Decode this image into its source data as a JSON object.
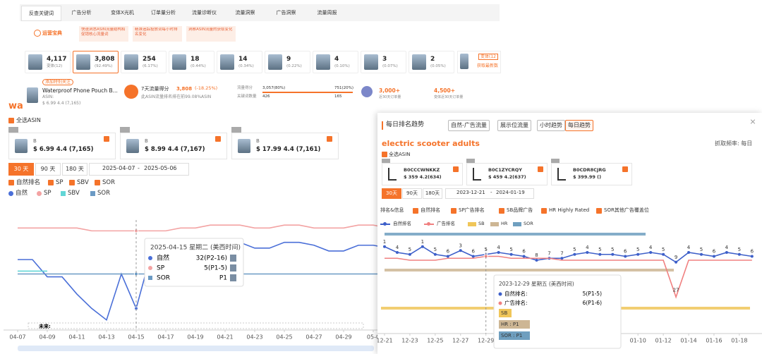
{
  "tabs": [
    "反查关键词",
    "广告分析",
    "变体X光机",
    "订单量分析",
    "流量诊断仪",
    "流量洞察",
    "广告洞察",
    "流量周报"
  ],
  "tips": {
    "label": "运营宝典",
    "items": [
      "快速洞悉ASIN流量结构和促销核心流量词",
      "精准追踪投放词每小时排名变化",
      "洞察ASIN流量的获取变化"
    ]
  },
  "variants": [
    {
      "value": "4,117",
      "share": "变体(12)"
    },
    {
      "value": "3,808",
      "share": "(92.49%)"
    },
    {
      "value": "254",
      "share": "(6.17%)"
    },
    {
      "value": "18",
      "share": "(0.44%)"
    },
    {
      "value": "14",
      "share": "(0.34%)"
    },
    {
      "value": "9",
      "share": "(0.22%)"
    },
    {
      "value": "4",
      "share": "(0.10%)"
    },
    {
      "value": "3",
      "share": "(0.07%)"
    },
    {
      "value": "2",
      "share": "(0.05%)"
    }
  ],
  "variant_more": [
    "变体(12",
    "获取最新数"
  ],
  "product": {
    "follow": "添加特别关注",
    "name": "Waterproof Phone Pouch B...",
    "asin": "ASIN:",
    "price": "$ 6.99 4.4 (7,165)"
  },
  "score": {
    "label": "7天流量得分",
    "value": "3,808",
    "change": "(-18.25%)",
    "note": "此ASIN流量排名排在前99.08%ASIN"
  },
  "split": {
    "row1": [
      "流量得分",
      "3,057(80%)",
      "751(20%)"
    ],
    "row2": [
      "关键词数量",
      "426",
      "165"
    ]
  },
  "orders": [
    {
      "value": "3,000+",
      "label": "近30天订单量"
    },
    {
      "value": "4,500+",
      "label": "变体近30天订单量"
    }
  ],
  "left": {
    "title": "wa",
    "select_all": "全选ASIN",
    "asins": [
      {
        "name": "B",
        "price": "$ 6.99 4.4 (7,165)"
      },
      {
        "name": "B",
        "price": "$ 8.99 4.4 (7,167)"
      },
      {
        "name": "B",
        "price": "$ 17.99 4.4 (7,161)"
      }
    ],
    "ranges": [
      "30 天",
      "90 天",
      "180 天"
    ],
    "dates": [
      "2025-04-07",
      "-",
      "2025-05-06"
    ],
    "filters": [
      "自然排名",
      "SP",
      "SBV",
      "SOR"
    ],
    "chart": {
      "type": "line",
      "y_inverted": true,
      "ylim": [
        0,
        40
      ],
      "categories": [
        "04-07",
        null,
        "04-09",
        null,
        "04-11",
        null,
        "04-13",
        null,
        "04-15",
        null,
        "04-17",
        null,
        "04-19",
        null,
        "04-21",
        null,
        "04-23",
        null,
        "04-25",
        null,
        "04-27",
        null,
        "04-29",
        null,
        "05-0",
        null,
        null,
        null,
        null,
        null
      ],
      "series": [
        {
          "name": "自然",
          "color": "#4a6fd8",
          "marker": "circle",
          "values": [
            15,
            15,
            21,
            21,
            27,
            32,
            36,
            20,
            32,
            13,
            13,
            14,
            14,
            13,
            9,
            9,
            11,
            11,
            9,
            9,
            10,
            12,
            12,
            10,
            10,
            11,
            9,
            9,
            9,
            9
          ]
        },
        {
          "name": "SP",
          "color": "#f3a3a3",
          "marker": "circle",
          "values": [
            4,
            4,
            4,
            4,
            4,
            5,
            5,
            5,
            5,
            5,
            5,
            4,
            4,
            3,
            3,
            3,
            4,
            4,
            3,
            3,
            4,
            4,
            4,
            3,
            3,
            4,
            4,
            4,
            3,
            3
          ]
        },
        {
          "name": "SBV",
          "color": "#62d6d6",
          "marker": "square",
          "values": [
            19,
            19,
            19,
            null,
            null,
            null,
            null,
            null,
            null,
            null,
            null,
            null,
            null,
            null,
            null,
            null,
            null,
            null,
            null,
            null,
            null,
            null,
            null,
            null,
            null,
            null,
            null,
            null,
            null,
            null
          ]
        },
        {
          "name": "SOR",
          "color": "#6b9ac4",
          "marker": "square",
          "values": [
            20,
            20,
            20,
            20,
            20,
            20,
            20,
            20,
            20,
            20,
            20,
            20,
            20,
            20,
            20,
            20,
            20,
            20,
            20,
            20,
            20,
            20,
            20,
            20,
            20,
            20,
            null,
            null,
            null,
            null
          ]
        }
      ]
    },
    "tooltip": {
      "title": "2025-04-15 星期二 (美西时间)",
      "rows": [
        [
          "自然",
          "32(P2-16)"
        ],
        [
          "SP",
          "5(P1-5)"
        ],
        [
          "SOR",
          "P1"
        ]
      ]
    },
    "future": "未来:"
  },
  "right": {
    "tabs": [
      "每日排名趋势",
      "自然-广告流量",
      "展示位流量",
      "小时趋势",
      "每日趋势"
    ],
    "keyword": "electric scooter adults",
    "freq": "抓取频率: 每日",
    "select_all": "全选ASIN",
    "asins": [
      {
        "name": "B0CCCWNKKZ",
        "price": "$ 359 4.2(634)"
      },
      {
        "name": "B0C1ZYCRQY",
        "price": "$ 459 4.2(637)"
      },
      {
        "name": "B0CDR8CJRG",
        "price": "$ 399.99 ()"
      }
    ],
    "ranges": [
      "30天",
      "90天",
      "180天"
    ],
    "dates": [
      "2023-12-21",
      "-",
      "2024-01-19"
    ],
    "filters": [
      "排名&信息",
      "自然排名",
      "SP广告排名",
      "SB品牌广告",
      "HR Highly Rated",
      "SOR其他广告覆盖位"
    ],
    "chart": {
      "type": "line",
      "y_inverted": true,
      "ylim": [
        0,
        40
      ],
      "categories": [
        "12-21",
        null,
        "12-23",
        null,
        "12-25",
        null,
        "12-27",
        null,
        "12-29",
        null,
        "12-31",
        null,
        "01-02",
        null,
        "01-04",
        null,
        "01-06",
        null,
        "01-08",
        null,
        "01-10",
        null,
        "01-12",
        null,
        "01-14",
        null,
        "01-16",
        null,
        "01-18",
        null
      ],
      "series": [
        {
          "name": "自然排名",
          "color": "#3d5fc9",
          "values": [
            1,
            4,
            5,
            1,
            5,
            6,
            3,
            6,
            5,
            4,
            5,
            6,
            8,
            7,
            7,
            5,
            4,
            5,
            5,
            6,
            5,
            4,
            5,
            9,
            4,
            5,
            6,
            4,
            5,
            6
          ]
        },
        {
          "name": "广告排名",
          "color": "#f08080",
          "values": [
            7,
            7,
            8,
            8,
            8,
            7,
            7,
            7,
            6,
            6,
            7,
            7,
            7,
            7,
            8,
            8,
            8,
            8,
            8,
            8,
            8,
            8,
            8,
            27,
            8,
            8,
            8,
            8,
            8,
            8
          ],
          "value_labels": [
            null,
            null,
            null,
            null,
            null,
            null,
            null,
            null,
            null,
            null,
            null,
            null,
            null,
            null,
            null,
            null,
            null,
            null,
            null,
            null,
            null,
            null,
            null,
            "27",
            null,
            null,
            null,
            null,
            null,
            null
          ]
        }
      ],
      "bands": [
        {
          "name": "SB",
          "color": "#f0c659"
        },
        {
          "name": "HR",
          "color": "#cdb694"
        },
        {
          "name": "SOR",
          "color": "#6f9fbf"
        }
      ]
    },
    "tooltip": {
      "title": "2023-12-29 星期五 (美西时间)",
      "rows": [
        [
          "自然排名:",
          "5(P1-5)"
        ],
        [
          "广告排名:",
          "6(P1-6)"
        ]
      ],
      "tags": [
        "SB",
        "HR : P1",
        "SOR : P1"
      ]
    }
  }
}
